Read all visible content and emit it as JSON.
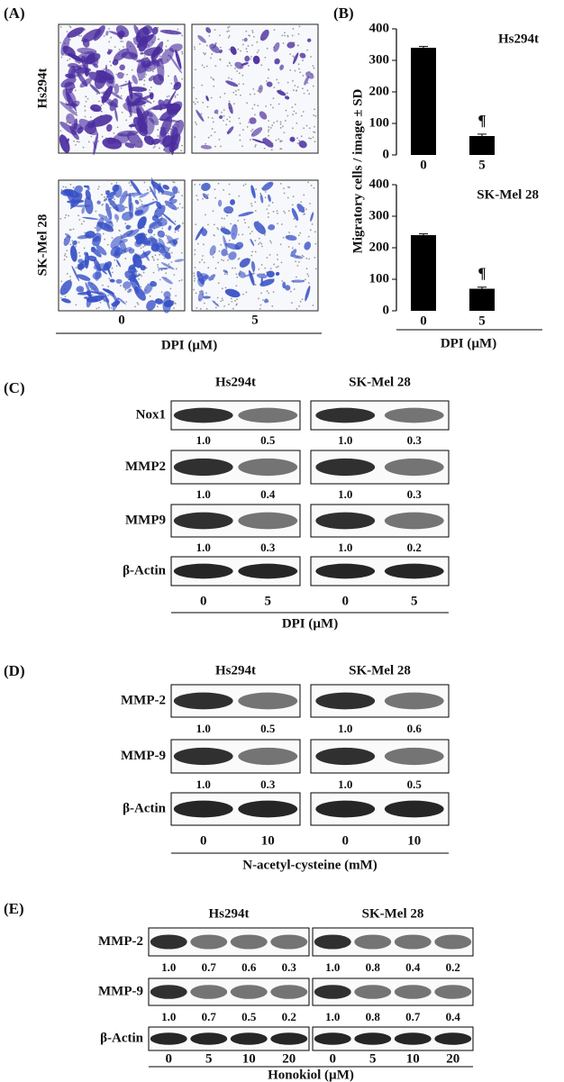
{
  "panel_a": {
    "label": "(A)",
    "rows": [
      "Hs294t",
      "SK-Mel 28"
    ],
    "x_labels": [
      "0",
      "5"
    ],
    "x_title": "DPI (µM)"
  },
  "panel_b": {
    "label": "(B)",
    "y_title": "Migratory cells / image ± SD",
    "x_title": "DPI (µM)"
  },
  "chart_data": [
    {
      "type": "bar",
      "title": "Hs294t",
      "categories": [
        "0",
        "5"
      ],
      "values": [
        340,
        60
      ],
      "errors": [
        4,
        6
      ],
      "annotation": "¶",
      "color": "#000000",
      "ylim": [
        0,
        400
      ],
      "yticks": [
        0,
        100,
        200,
        300,
        400
      ]
    },
    {
      "type": "bar",
      "title": "SK-Mel 28",
      "categories": [
        "0",
        "5"
      ],
      "values": [
        240,
        70
      ],
      "errors": [
        4,
        5
      ],
      "annotation": "¶",
      "color": "#000000",
      "ylim": [
        0,
        400
      ],
      "yticks": [
        0,
        100,
        200,
        300,
        400
      ]
    }
  ],
  "panel_c": {
    "label": "(C)",
    "groups": [
      "Hs294t",
      "SK-Mel 28"
    ],
    "rows": [
      {
        "name": "Nox1",
        "values": [
          "1.0",
          "0.5",
          "1.0",
          "0.3"
        ]
      },
      {
        "name": "MMP2",
        "values": [
          "1.0",
          "0.4",
          "1.0",
          "0.3"
        ]
      },
      {
        "name": "MMP9",
        "values": [
          "1.0",
          "0.3",
          "1.0",
          "0.2"
        ]
      },
      {
        "name": "β-Actin"
      }
    ],
    "lanes": [
      "0",
      "5",
      "0",
      "5"
    ],
    "x_title": "DPI (µM)"
  },
  "panel_d": {
    "label": "(D)",
    "groups": [
      "Hs294t",
      "SK-Mel 28"
    ],
    "rows": [
      {
        "name": "MMP-2",
        "values": [
          "1.0",
          "0.5",
          "1.0",
          "0.6"
        ]
      },
      {
        "name": "MMP-9",
        "values": [
          "1.0",
          "0.3",
          "1.0",
          "0.5"
        ]
      },
      {
        "name": "β-Actin"
      }
    ],
    "lanes": [
      "0",
      "10",
      "0",
      "10"
    ],
    "x_title": "N-acetyl-cysteine (mM)"
  },
  "panel_e": {
    "label": "(E)",
    "groups": [
      "Hs294t",
      "SK-Mel 28"
    ],
    "rows": [
      {
        "name": "MMP-2",
        "values": [
          "1.0",
          "0.7",
          "0.6",
          "0.3",
          "1.0",
          "0.8",
          "0.4",
          "0.2"
        ]
      },
      {
        "name": "MMP-9",
        "values": [
          "1.0",
          "0.7",
          "0.5",
          "0.2",
          "1.0",
          "0.8",
          "0.7",
          "0.4"
        ]
      },
      {
        "name": "β-Actin"
      }
    ],
    "lanes": [
      "0",
      "5",
      "10",
      "20",
      "0",
      "5",
      "10",
      "20"
    ],
    "x_title": "Honokiol (µM)"
  }
}
